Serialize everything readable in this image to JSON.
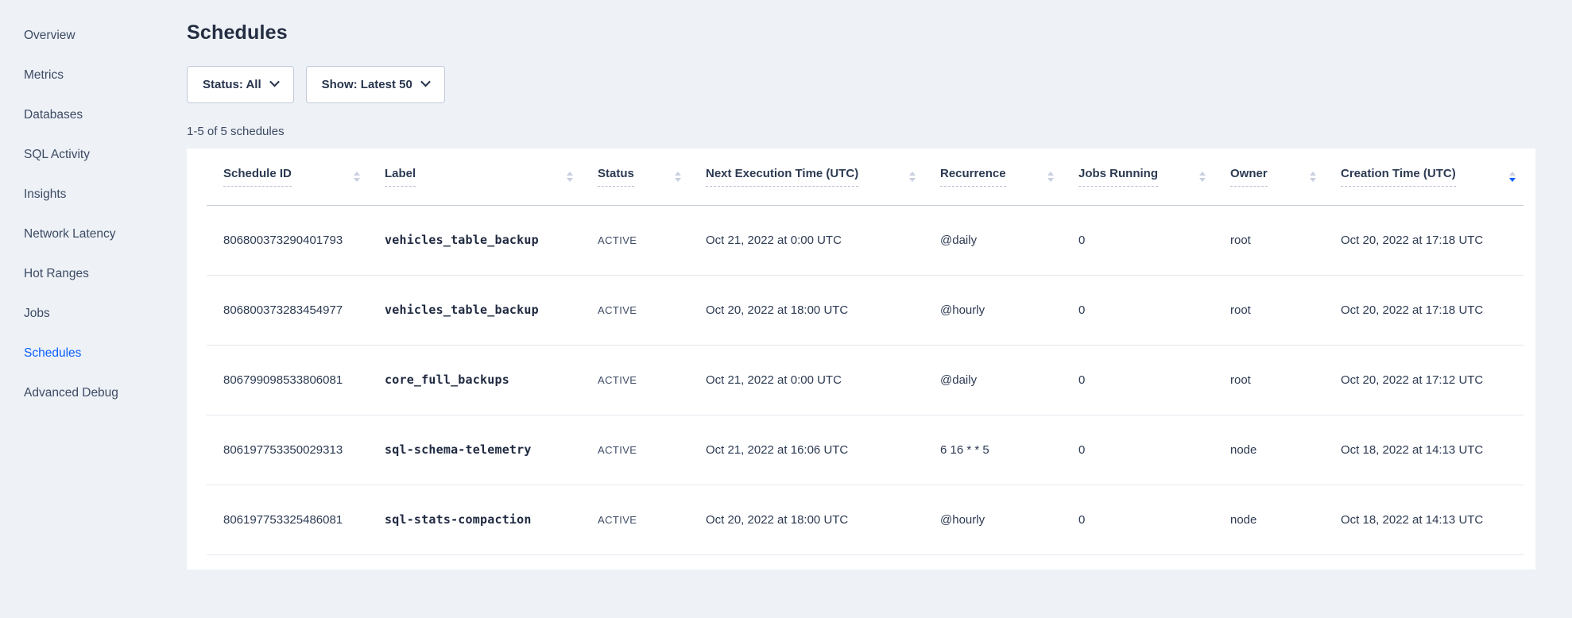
{
  "colors": {
    "accent_blue": "#0b5fff",
    "page_background": "#eef2f7",
    "card_background": "#ffffff",
    "text_dark": "#242e42"
  },
  "sidebar": {
    "items": [
      {
        "label": "Overview",
        "active": false
      },
      {
        "label": "Metrics",
        "active": false
      },
      {
        "label": "Databases",
        "active": false
      },
      {
        "label": "SQL Activity",
        "active": false
      },
      {
        "label": "Insights",
        "active": false
      },
      {
        "label": "Network Latency",
        "active": false
      },
      {
        "label": "Hot Ranges",
        "active": false
      },
      {
        "label": "Jobs",
        "active": false
      },
      {
        "label": "Schedules",
        "active": true
      },
      {
        "label": "Advanced Debug",
        "active": false
      }
    ]
  },
  "header": {
    "title": "Schedules"
  },
  "filters": {
    "status_dropdown": "Status: All",
    "show_dropdown": "Show: Latest 50"
  },
  "summary": "1-5 of 5 schedules",
  "table": {
    "columns": [
      {
        "label": "Schedule ID",
        "sort": "none"
      },
      {
        "label": "Label",
        "sort": "none"
      },
      {
        "label": "Status",
        "sort": "none"
      },
      {
        "label": "Next Execution Time (UTC)",
        "sort": "none"
      },
      {
        "label": "Recurrence",
        "sort": "none"
      },
      {
        "label": "Jobs Running",
        "sort": "none"
      },
      {
        "label": "Owner",
        "sort": "none"
      },
      {
        "label": "Creation Time (UTC)",
        "sort": "desc"
      }
    ],
    "rows": [
      {
        "id": "806800373290401793",
        "label": "vehicles_table_backup",
        "status": "ACTIVE",
        "next_execution": "Oct 21, 2022 at 0:00 UTC",
        "recurrence": "@daily",
        "jobs_running": "0",
        "owner": "root",
        "creation_time": "Oct 20, 2022 at 17:18 UTC"
      },
      {
        "id": "806800373283454977",
        "label": "vehicles_table_backup",
        "status": "ACTIVE",
        "next_execution": "Oct 20, 2022 at 18:00 UTC",
        "recurrence": "@hourly",
        "jobs_running": "0",
        "owner": "root",
        "creation_time": "Oct 20, 2022 at 17:18 UTC"
      },
      {
        "id": "806799098533806081",
        "label": "core_full_backups",
        "status": "ACTIVE",
        "next_execution": "Oct 21, 2022 at 0:00 UTC",
        "recurrence": "@daily",
        "jobs_running": "0",
        "owner": "root",
        "creation_time": "Oct 20, 2022 at 17:12 UTC"
      },
      {
        "id": "806197753350029313",
        "label": "sql-schema-telemetry",
        "status": "ACTIVE",
        "next_execution": "Oct 21, 2022 at 16:06 UTC",
        "recurrence": "6 16 * * 5",
        "jobs_running": "0",
        "owner": "node",
        "creation_time": "Oct 18, 2022 at 14:13 UTC"
      },
      {
        "id": "806197753325486081",
        "label": "sql-stats-compaction",
        "status": "ACTIVE",
        "next_execution": "Oct 20, 2022 at 18:00 UTC",
        "recurrence": "@hourly",
        "jobs_running": "0",
        "owner": "node",
        "creation_time": "Oct 18, 2022 at 14:13 UTC"
      }
    ]
  }
}
